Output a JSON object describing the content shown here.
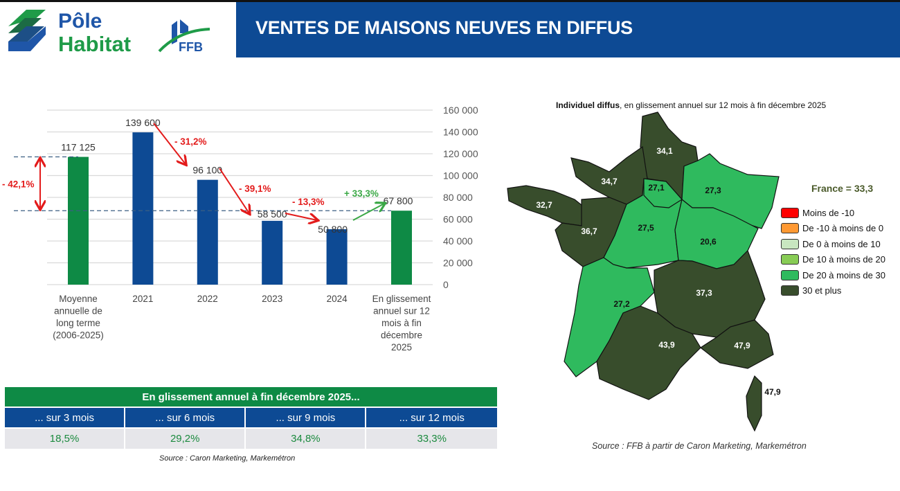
{
  "header": {
    "title": "VENTES DE MAISONS NEUVES EN DIFFUS",
    "logo_text": [
      "Pôle",
      "Habitat",
      "FFB"
    ]
  },
  "colors": {
    "blue": "#0d4a94",
    "green": "#0e8a45",
    "red": "#e31b1b",
    "up_green": "#3aa845",
    "map_dark": "#384d2c",
    "map_light": "#2fba5e"
  },
  "chart_data": {
    "type": "bar",
    "categories": [
      "Moyenne annuelle de long terme (2006-2025)",
      "2021",
      "2022",
      "2023",
      "2024",
      "En glissement annuel sur 12 mois à fin décembre 2025"
    ],
    "category_lines": [
      [
        "Moyenne",
        "annuelle de",
        "long terme",
        "(2006-2025)"
      ],
      [
        "2021"
      ],
      [
        "2022"
      ],
      [
        "2023"
      ],
      [
        "2024"
      ],
      [
        "En glissement",
        "annuel sur 12",
        "mois à fin",
        "décembre",
        "2025"
      ]
    ],
    "values": [
      117125,
      139600,
      96100,
      58500,
      50800,
      67800
    ],
    "value_labels": [
      "117 125",
      "139 600",
      "96 100",
      "58 500",
      "50 800",
      "67 800"
    ],
    "bar_colors": [
      "#0e8a45",
      "#0d4a94",
      "#0d4a94",
      "#0d4a94",
      "#0d4a94",
      "#0e8a45"
    ],
    "ylim": [
      0,
      160000
    ],
    "yticks": [
      0,
      20000,
      40000,
      60000,
      80000,
      100000,
      120000,
      140000,
      160000
    ],
    "ytick_labels": [
      "0",
      "20 000",
      "40 000",
      "60 000",
      "80 000",
      "100 000",
      "120 000",
      "140 000",
      "160 000"
    ],
    "y_axis_side": "right",
    "grid": true,
    "annotations": [
      {
        "text": "- 42,1%",
        "from": 0,
        "to": 5,
        "color": "#e31b1b"
      },
      {
        "text": "- 31,2%",
        "from": 1,
        "to": 2,
        "color": "#e31b1b"
      },
      {
        "text": "- 39,1%",
        "from": 2,
        "to": 3,
        "color": "#e31b1b"
      },
      {
        "text": "- 13,3%",
        "from": 3,
        "to": 4,
        "color": "#e31b1b"
      },
      {
        "text": "+ 33,3%",
        "from": 4,
        "to": 5,
        "color": "#3aa845"
      }
    ]
  },
  "table": {
    "title": "En glissement annuel à fin décembre 2025...",
    "columns": [
      "... sur 3 mois",
      "... sur 6 mois",
      "... sur 9 mois",
      "... sur 12 mois"
    ],
    "values": [
      "18,5%",
      "29,2%",
      "34,8%",
      "33,3%"
    ]
  },
  "source_left": "Source : Caron Marketing, Markemétron",
  "map": {
    "title_bold": "Individuel diffus",
    "title_rest": ", en glissement annuel sur 12 mois à fin décembre 2025",
    "france": "France = 33,3",
    "legend": [
      {
        "label": "Moins de -10",
        "color": "#ff0000"
      },
      {
        "label": "De -10 à moins de 0",
        "color": "#ff9933"
      },
      {
        "label": "De 0 à moins de 10",
        "color": "#c8e6c0"
      },
      {
        "label": "De 10 à moins de 20",
        "color": "#88cc55"
      },
      {
        "label": "De 20 à moins de 30",
        "color": "#2fba5e"
      },
      {
        "label": "30 et plus",
        "color": "#384d2c"
      }
    ],
    "regions": [
      {
        "name": "Hauts-de-France",
        "value": "34,1",
        "class": "30 et plus"
      },
      {
        "name": "Normandie",
        "value": "34,7",
        "class": "30 et plus"
      },
      {
        "name": "Bretagne",
        "value": "32,7",
        "class": "30 et plus"
      },
      {
        "name": "Pays de la Loire",
        "value": "36,7",
        "class": "30 et plus"
      },
      {
        "name": "Centre-Val de Loire",
        "value": "27,5",
        "class": "De 20 à moins de 30"
      },
      {
        "name": "Île-de-France",
        "value": "27,1",
        "class": "De 20 à moins de 30"
      },
      {
        "name": "Grand Est",
        "value": "27,3",
        "class": "De 20 à moins de 30"
      },
      {
        "name": "Bourgogne-Franche-Comté",
        "value": "20,6",
        "class": "De 20 à moins de 30"
      },
      {
        "name": "Nouvelle-Aquitaine",
        "value": "27,2",
        "class": "De 20 à moins de 30"
      },
      {
        "name": "Auvergne-Rhône-Alpes",
        "value": "37,3",
        "class": "30 et plus"
      },
      {
        "name": "Occitanie",
        "value": "43,9",
        "class": "30 et plus"
      },
      {
        "name": "Provence-Alpes-Côte d'Azur",
        "value": "47,9",
        "class": "30 et plus"
      },
      {
        "name": "Corse",
        "value": "47,9",
        "class": "30 et plus"
      }
    ]
  },
  "source_right": "Source : FFB à partir de Caron Marketing, Markemétron"
}
